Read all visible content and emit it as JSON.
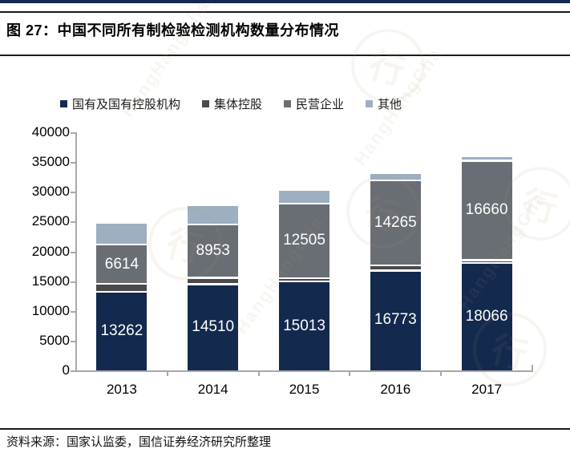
{
  "page": {
    "title": "图 27：中国不同所有制检验检测机构数量分布情况",
    "source_note": "资料来源：国家认监委，国信证券经济研究所整理",
    "watermark_text": "HangHangCha",
    "watermark_symbol": "行"
  },
  "colors": {
    "top_band": "#13294e",
    "rule": "#1a1a1a",
    "axis": "#a8a8a8",
    "bar_label_text": "#ffffff"
  },
  "chart_data": {
    "type": "bar",
    "stacked": true,
    "title": "中国不同所有制检验检测机构数量分布情况",
    "categories": [
      "2013",
      "2014",
      "2015",
      "2016",
      "2017"
    ],
    "series": [
      {
        "name": "国有及国有控股机构",
        "color": "#13294e",
        "values": [
          13262,
          14510,
          15013,
          16773,
          18066
        ],
        "labels_shown": true,
        "estimated": false
      },
      {
        "name": "集体控股",
        "color": "#4a4a4a",
        "values": [
          1300,
          1100,
          500,
          900,
          500
        ],
        "labels_shown": false,
        "estimated": true
      },
      {
        "name": "民营企业",
        "color": "#696d74",
        "values": [
          6614,
          8953,
          12505,
          14265,
          16660
        ],
        "labels_shown": true,
        "estimated": false
      },
      {
        "name": "其他",
        "color": "#9dafc1",
        "values": [
          3500,
          3000,
          2100,
          1000,
          600
        ],
        "labels_shown": false,
        "estimated": true
      }
    ],
    "ylim": [
      0,
      40000
    ],
    "ytick_step": 5000,
    "yticks": [
      "40000",
      "35000",
      "30000",
      "25000",
      "20000",
      "15000",
      "10000",
      "5000",
      "0"
    ],
    "xlabel": "",
    "ylabel": "",
    "legend_position": "top",
    "grid": false
  }
}
